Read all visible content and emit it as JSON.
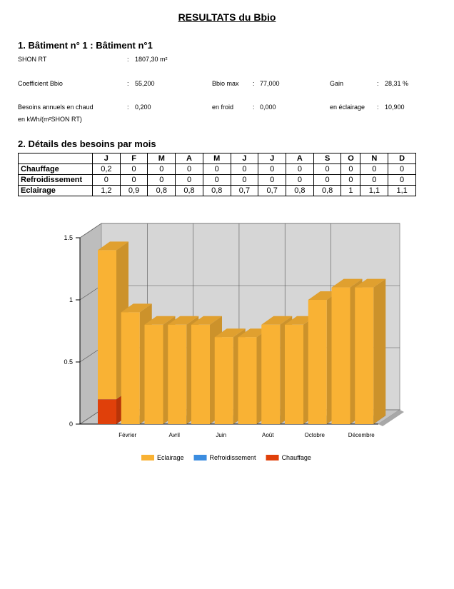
{
  "header": {
    "title": "RESULTATS du Bbio"
  },
  "section1": {
    "heading": "1. Bâtiment n° 1 : Bâtiment n°1",
    "separator": ":",
    "shon": {
      "label": "SHON RT",
      "value": "1807,30 m²"
    },
    "bbio": {
      "label": "Coefficient Bbio",
      "value": "55,200"
    },
    "bbio_max": {
      "label": "Bbio max",
      "value": "77,000"
    },
    "gain": {
      "label": "Gain",
      "value": "28,31 %"
    },
    "chaud": {
      "label": [
        "Besoins annuels en chaud",
        "en kWh/(m²SHON RT)"
      ],
      "value": "0,200"
    },
    "froid": {
      "label": "en froid",
      "value": "0,000"
    },
    "eclairage": {
      "label": "en éclairage",
      "value": "10,900"
    }
  },
  "section2": {
    "heading": "2. Détails des besoins par mois",
    "table": {
      "columns": [
        "J",
        "F",
        "M",
        "A",
        "M",
        "J",
        "J",
        "A",
        "S",
        "O",
        "N",
        "D"
      ],
      "rows": [
        {
          "label": "Chauffage",
          "cells": [
            "0,2",
            "0",
            "0",
            "0",
            "0",
            "0",
            "0",
            "0",
            "0",
            "0",
            "0",
            "0"
          ]
        },
        {
          "label": "Refroidissement",
          "cells": [
            "0",
            "0",
            "0",
            "0",
            "0",
            "0",
            "0",
            "0",
            "0",
            "0",
            "0",
            "0"
          ]
        },
        {
          "label": "Eclairage",
          "cells": [
            "1,2",
            "0,9",
            "0,8",
            "0,8",
            "0,8",
            "0,7",
            "0,7",
            "0,8",
            "0,8",
            "1",
            "1,1",
            "1,1"
          ]
        }
      ]
    }
  },
  "chart_data": {
    "type": "bar",
    "stacked": true,
    "categories": [
      null,
      "Février",
      null,
      "Avril",
      null,
      "Juin",
      null,
      "Août",
      null,
      "Octobre",
      null,
      "Décembre"
    ],
    "series": [
      {
        "name": "Eclairage",
        "color": "#f9b234",
        "values": [
          1.2,
          0.9,
          0.8,
          0.8,
          0.8,
          0.7,
          0.7,
          0.8,
          0.8,
          1,
          1.1,
          1.1
        ]
      },
      {
        "name": "Refroidissement",
        "color": "#3b8de0",
        "values": [
          0,
          0,
          0,
          0,
          0,
          0,
          0,
          0,
          0,
          0,
          0,
          0
        ]
      },
      {
        "name": "Chauffage",
        "color": "#e0400a",
        "values": [
          0.2,
          0,
          0,
          0,
          0,
          0,
          0,
          0,
          0,
          0,
          0,
          0
        ]
      }
    ],
    "ylim": [
      0,
      1.5
    ],
    "yticks": [
      0,
      0.5,
      1,
      1.5
    ],
    "grid": true,
    "legend": "bottom"
  }
}
